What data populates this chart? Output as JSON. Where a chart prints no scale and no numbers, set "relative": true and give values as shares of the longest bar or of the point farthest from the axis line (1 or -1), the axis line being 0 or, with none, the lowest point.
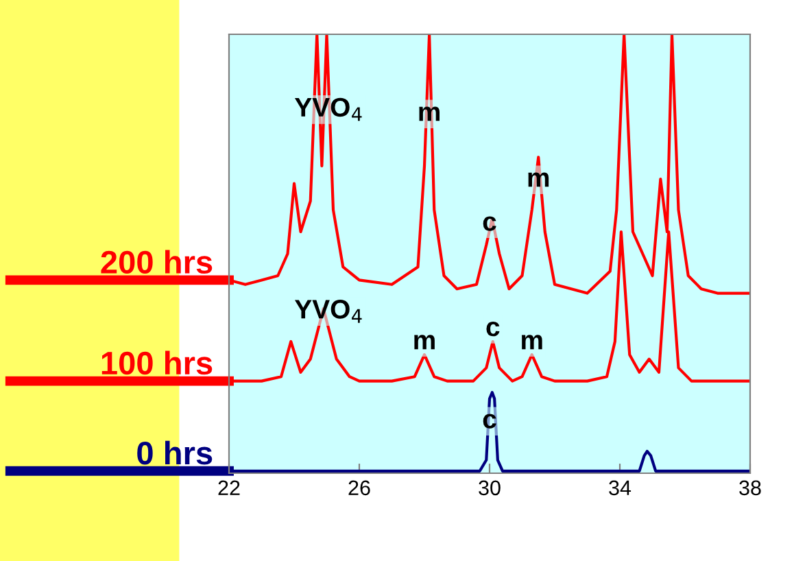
{
  "chart_data": {
    "type": "line",
    "relative": true,
    "xlim": [
      22,
      38
    ],
    "xticks": [
      22,
      26,
      30,
      34,
      38
    ],
    "grid": false,
    "tick_labels": "x",
    "series": [
      {
        "name": "200 hrs",
        "color": "#ff0000",
        "x": [
          22,
          22.5,
          23,
          23.5,
          23.8,
          24.0,
          24.2,
          24.5,
          24.7,
          24.85,
          25.0,
          25.2,
          25.5,
          26,
          27,
          27.8,
          28.0,
          28.15,
          28.3,
          28.6,
          29,
          29.6,
          29.9,
          30.08,
          30.3,
          30.6,
          31.0,
          31.3,
          31.5,
          31.7,
          32,
          33,
          33.7,
          33.9,
          34.13,
          34.4,
          34.7,
          35.0,
          35.25,
          35.45,
          35.6,
          35.8,
          36.1,
          36.5,
          37,
          38
        ],
        "values": [
          0.44,
          0.43,
          0.44,
          0.45,
          0.5,
          0.66,
          0.55,
          0.62,
          1.0,
          0.7,
          1.0,
          0.6,
          0.47,
          0.44,
          0.43,
          0.47,
          0.7,
          1.0,
          0.6,
          0.45,
          0.42,
          0.43,
          0.52,
          0.58,
          0.5,
          0.42,
          0.45,
          0.6,
          0.72,
          0.55,
          0.43,
          0.41,
          0.46,
          0.6,
          1.0,
          0.55,
          0.5,
          0.45,
          0.67,
          0.55,
          1.0,
          0.6,
          0.45,
          0.42,
          0.41,
          0.41
        ]
      },
      {
        "name": "100 hrs",
        "color": "#ff0000",
        "x": [
          22,
          23,
          23.6,
          23.9,
          24.2,
          24.5,
          24.9,
          25.3,
          25.7,
          26,
          27,
          27.7,
          28.0,
          28.3,
          28.7,
          29.5,
          29.9,
          30.1,
          30.3,
          30.7,
          31.0,
          31.3,
          31.6,
          32,
          33,
          33.6,
          33.85,
          34.04,
          34.3,
          34.6,
          34.9,
          35.2,
          35.5,
          35.8,
          36.2,
          37,
          38
        ],
        "values": [
          0.21,
          0.21,
          0.22,
          0.3,
          0.23,
          0.26,
          0.375,
          0.26,
          0.22,
          0.21,
          0.21,
          0.22,
          0.27,
          0.22,
          0.21,
          0.21,
          0.24,
          0.3,
          0.24,
          0.21,
          0.22,
          0.27,
          0.22,
          0.21,
          0.21,
          0.22,
          0.3,
          0.55,
          0.27,
          0.23,
          0.26,
          0.23,
          0.55,
          0.24,
          0.21,
          0.21,
          0.21
        ]
      },
      {
        "name": "0 hrs",
        "color": "#000080",
        "x": [
          22,
          29.7,
          29.9,
          30.0,
          30.08,
          30.15,
          30.25,
          30.4,
          34.6,
          34.75,
          34.84,
          34.95,
          35.1,
          38
        ],
        "values": [
          0.005,
          0.005,
          0.03,
          0.17,
          0.184,
          0.17,
          0.03,
          0.005,
          0.005,
          0.04,
          0.05,
          0.04,
          0.005,
          0.005
        ]
      }
    ],
    "annotations": [
      {
        "text": "YVO$_{4}$",
        "x": 25.07,
        "y": 0.8
      },
      {
        "text": "m",
        "x": 28.15,
        "y": 0.79
      },
      {
        "text": "c",
        "x": 30.0,
        "y": 0.54
      },
      {
        "text": "m",
        "x": 31.5,
        "y": 0.64
      },
      {
        "text": "YVO$_{4}$",
        "x": 25.07,
        "y": 0.34
      },
      {
        "text": "m",
        "x": 28.0,
        "y": 0.27
      },
      {
        "text": "c",
        "x": 30.1,
        "y": 0.3
      },
      {
        "text": "m",
        "x": 31.3,
        "y": 0.27
      },
      {
        "text": "c",
        "x": 30.0,
        "y": 0.09
      }
    ]
  }
}
